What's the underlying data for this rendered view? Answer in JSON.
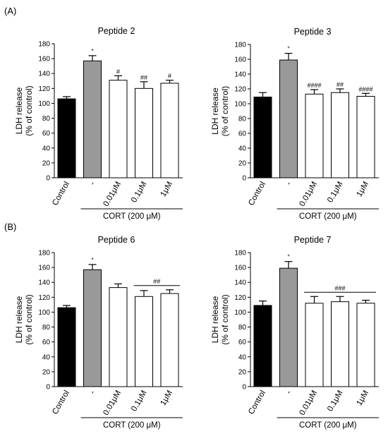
{
  "section_labels": [
    "(A)",
    "(B)"
  ],
  "chart_data": [
    {
      "type": "bar",
      "title": "Peptide 2",
      "ylabel": "LDH release",
      "ylabel2": "(% of control)",
      "ylim": [
        0,
        180
      ],
      "yticks": [
        0,
        20,
        40,
        60,
        80,
        100,
        120,
        140,
        160,
        180
      ],
      "categories": [
        "Control",
        "-",
        "0.01μM",
        "0.1μM",
        "1μM"
      ],
      "values": [
        106,
        157,
        131,
        120,
        127
      ],
      "errors": [
        3,
        7,
        6,
        9,
        4
      ],
      "colors": [
        "#000000",
        "#999999",
        "#ffffff",
        "#ffffff",
        "#ffffff"
      ],
      "annotations": [
        "",
        "*",
        "#",
        "##",
        "#"
      ],
      "group_line_label": "",
      "xgroup_label": "CORT (200 μM)"
    },
    {
      "type": "bar",
      "title": "Peptide 3",
      "ylabel": "LDH release",
      "ylabel2": "(% of control)",
      "ylim": [
        0,
        180
      ],
      "yticks": [
        0,
        20,
        40,
        60,
        80,
        100,
        120,
        140,
        160,
        180
      ],
      "categories": [
        "Control",
        "-",
        "0.01μM",
        "0.1μM",
        "1μM"
      ],
      "values": [
        109,
        159,
        113,
        115,
        110
      ],
      "errors": [
        6,
        9,
        6,
        5,
        4
      ],
      "colors": [
        "#000000",
        "#999999",
        "#ffffff",
        "#ffffff",
        "#ffffff"
      ],
      "annotations": [
        "",
        "*",
        "####",
        "##",
        "####"
      ],
      "group_line_label": "",
      "xgroup_label": "CORT (200 μM)"
    },
    {
      "type": "bar",
      "title": "Peptide 6",
      "ylabel": "LDH release",
      "ylabel2": "(% of control)",
      "ylim": [
        0,
        180
      ],
      "yticks": [
        0,
        20,
        40,
        60,
        80,
        100,
        120,
        140,
        160,
        180
      ],
      "categories": [
        "Control",
        "-",
        "0.01μM",
        "0.1μM",
        "1μM"
      ],
      "values": [
        106,
        157,
        133,
        121,
        125
      ],
      "errors": [
        3,
        7,
        5,
        8,
        5
      ],
      "colors": [
        "#000000",
        "#999999",
        "#ffffff",
        "#ffffff",
        "#ffffff"
      ],
      "annotations": [
        "",
        "*",
        "",
        "",
        ""
      ],
      "group_line_label": "##",
      "group_line_span": [
        3,
        4
      ],
      "xgroup_label": "CORT (200 μM)"
    },
    {
      "type": "bar",
      "title": "Peptide 7",
      "ylabel": "LDH release",
      "ylabel2": "(% of control)",
      "ylim": [
        0,
        180
      ],
      "yticks": [
        0,
        20,
        40,
        60,
        80,
        100,
        120,
        140,
        160,
        180
      ],
      "categories": [
        "Control",
        "-",
        "0.01μM",
        "0.1μM",
        "1μM"
      ],
      "values": [
        109,
        159,
        112,
        114,
        112
      ],
      "errors": [
        6,
        9,
        9,
        7,
        4
      ],
      "colors": [
        "#000000",
        "#999999",
        "#ffffff",
        "#ffffff",
        "#ffffff"
      ],
      "annotations": [
        "",
        "*",
        "",
        "",
        ""
      ],
      "group_line_label": "###",
      "group_line_span": [
        2,
        4
      ],
      "xgroup_label": "CORT (200 μM)"
    }
  ]
}
